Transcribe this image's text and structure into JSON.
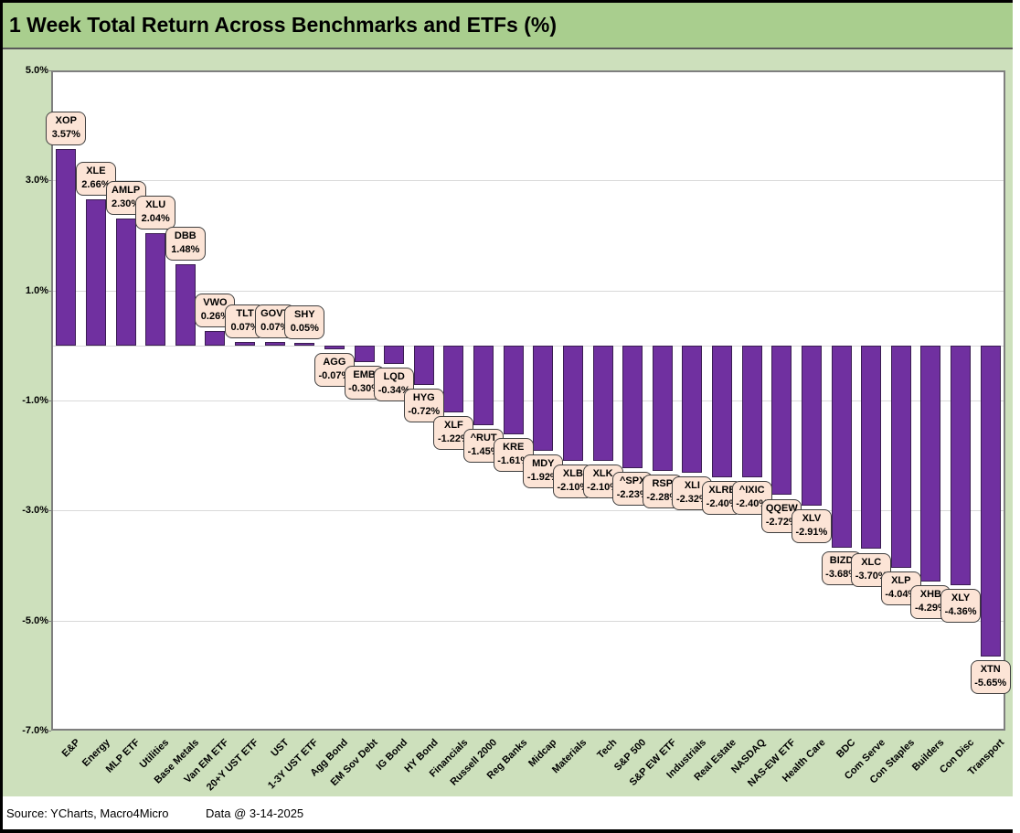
{
  "colors": {
    "title_band": "#A9CE8E",
    "background": "#CDE0BC",
    "bar": "#7030A0",
    "bar_border": "#3A1D52",
    "callout_fill": "#FCE4D6",
    "callout_border": "#3F3F3F",
    "gridline": "#D9D9D9",
    "plot_border": "#7F7F7F"
  },
  "footer": {
    "source": "Source: YCharts, Macro4Micro",
    "date": "Data @ 3-14-2025"
  },
  "chart_data": {
    "type": "bar",
    "title": "1 Week Total Return Across Benchmarks and ETFs (%)",
    "xlabel": "",
    "ylabel": "",
    "ylim": [
      -7,
      5
    ],
    "grid": true,
    "legend": "none",
    "yticks": [
      {
        "v": 5,
        "label": "5.0%"
      },
      {
        "v": 3,
        "label": "3.0%"
      },
      {
        "v": 1,
        "label": "1.0%"
      },
      {
        "v": -1,
        "label": "-1.0%"
      },
      {
        "v": -3,
        "label": "-3.0%"
      },
      {
        "v": -5,
        "label": "-5.0%"
      },
      {
        "v": -7,
        "label": "-7.0%"
      }
    ],
    "ygrid_values": [
      3,
      1,
      0,
      -1,
      -3,
      -5
    ],
    "points": [
      {
        "category": "E&P",
        "ticker": "XOP",
        "value": 3.57,
        "label": "3.57%"
      },
      {
        "category": "Energy",
        "ticker": "XLE",
        "value": 2.66,
        "label": "2.66%"
      },
      {
        "category": "MLP ETF",
        "ticker": "AMLP",
        "value": 2.3,
        "label": "2.30%"
      },
      {
        "category": "Utilities",
        "ticker": "XLU",
        "value": 2.04,
        "label": "2.04%"
      },
      {
        "category": "Base Metals",
        "ticker": "DBB",
        "value": 1.48,
        "label": "1.48%"
      },
      {
        "category": "Van EM ETF",
        "ticker": "VWO",
        "value": 0.26,
        "label": "0.26%"
      },
      {
        "category": "20+Y UST ETF",
        "ticker": "TLT",
        "value": 0.07,
        "label": "0.07%"
      },
      {
        "category": "UST",
        "ticker": "GOVT",
        "value": 0.07,
        "label": "0.07%"
      },
      {
        "category": "1-3Y UST ETF",
        "ticker": "SHY",
        "value": 0.05,
        "label": "0.05%"
      },
      {
        "category": "Agg Bond",
        "ticker": "AGG",
        "value": -0.07,
        "label": "-0.07%"
      },
      {
        "category": "EM Sov Debt",
        "ticker": "EMB",
        "value": -0.3,
        "label": "-0.30%"
      },
      {
        "category": "IG Bond",
        "ticker": "LQD",
        "value": -0.34,
        "label": "-0.34%"
      },
      {
        "category": "HY Bond",
        "ticker": "HYG",
        "value": -0.72,
        "label": "-0.72%"
      },
      {
        "category": "Financials",
        "ticker": "XLF",
        "value": -1.22,
        "label": "-1.22%"
      },
      {
        "category": "Russell 2000",
        "ticker": "^RUT",
        "value": -1.45,
        "label": "-1.45%"
      },
      {
        "category": "Reg Banks",
        "ticker": "KRE",
        "value": -1.61,
        "label": "-1.61%"
      },
      {
        "category": "Midcap",
        "ticker": "MDY",
        "value": -1.92,
        "label": "-1.92%"
      },
      {
        "category": "Materials",
        "ticker": "XLB",
        "value": -2.1,
        "label": "-2.10%"
      },
      {
        "category": "Tech",
        "ticker": "XLK",
        "value": -2.1,
        "label": "-2.10%"
      },
      {
        "category": "S&P 500",
        "ticker": "^SPX",
        "value": -2.23,
        "label": "-2.23%"
      },
      {
        "category": "S&P EW ETF",
        "ticker": "RSP",
        "value": -2.28,
        "label": "-2.28%"
      },
      {
        "category": "Industrials",
        "ticker": "XLI",
        "value": -2.32,
        "label": "-2.32%"
      },
      {
        "category": "Real Estate",
        "ticker": "XLRE",
        "value": -2.4,
        "label": "-2.40%"
      },
      {
        "category": "NASDAQ",
        "ticker": "^IXIC",
        "value": -2.4,
        "label": "-2.40%"
      },
      {
        "category": "NAS-EW ETF",
        "ticker": "QQEW",
        "value": -2.72,
        "label": "-2.72%"
      },
      {
        "category": "Health Care",
        "ticker": "XLV",
        "value": -2.91,
        "label": "-2.91%"
      },
      {
        "category": "BDC",
        "ticker": "BIZD",
        "value": -3.68,
        "label": "-3.68%"
      },
      {
        "category": "Com Serve",
        "ticker": "XLC",
        "value": -3.7,
        "label": "-3.70%"
      },
      {
        "category": "Con Staples",
        "ticker": "XLP",
        "value": -4.04,
        "label": "-4.04%"
      },
      {
        "category": "Builders",
        "ticker": "XHB",
        "value": -4.29,
        "label": "-4.29%"
      },
      {
        "category": "Con Disc",
        "ticker": "XLY",
        "value": -4.36,
        "label": "-4.36%"
      },
      {
        "category": "Transport",
        "ticker": "XTN",
        "value": -5.65,
        "label": "-5.65%"
      }
    ]
  }
}
